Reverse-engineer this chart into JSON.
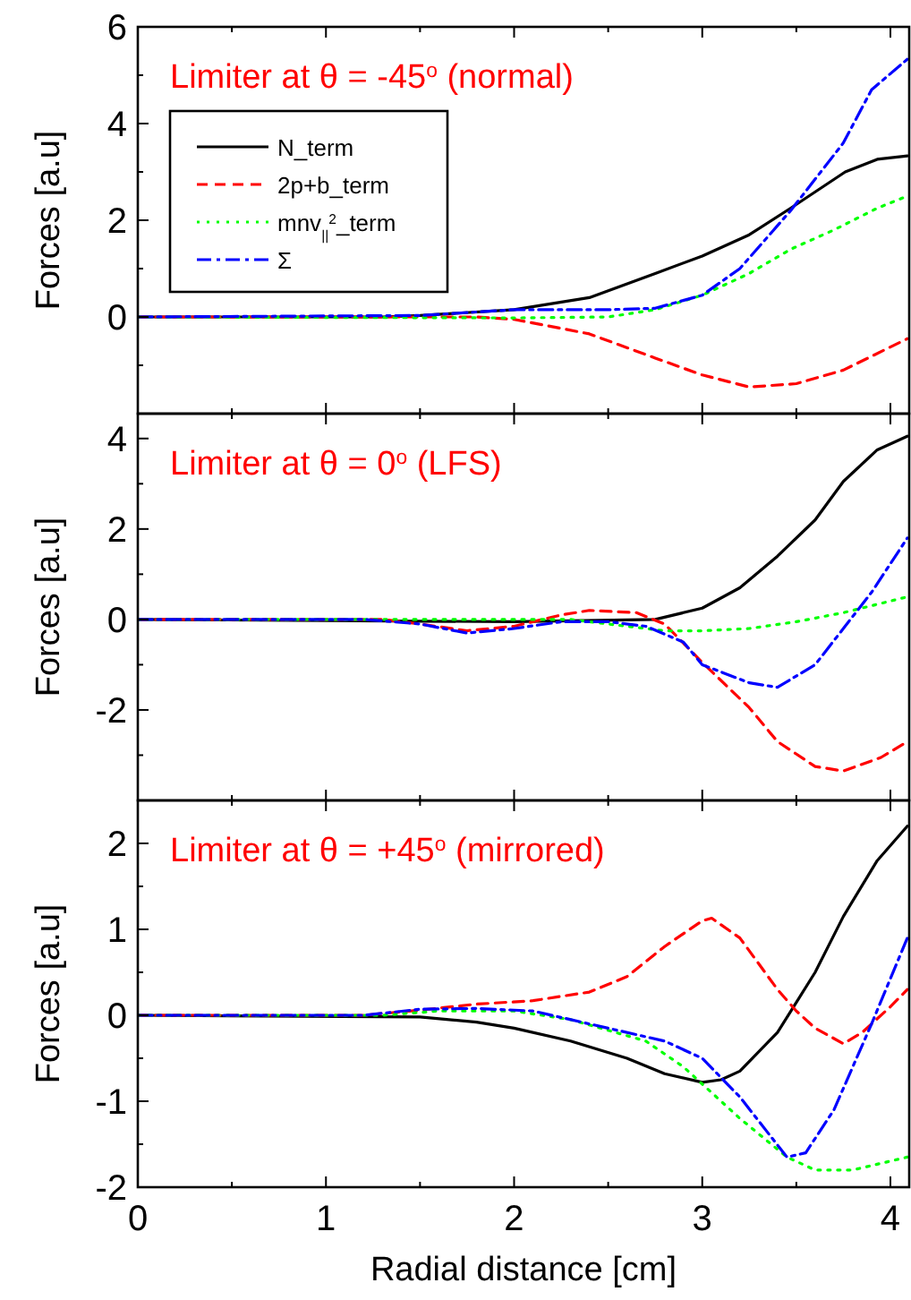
{
  "chart_data": [
    {
      "type": "line",
      "ylabel": "Forces [a.u]",
      "annotations": [
        "Limiter at  θ = -45$^{o}$ (normal)"
      ],
      "xlim": [
        0,
        4.1
      ],
      "xticks": [
        0,
        {
          "value": 0.5,
          "label": null
        },
        1,
        {
          "value": 1.5,
          "label": null
        },
        2,
        {
          "value": 2.5,
          "label": null
        },
        3,
        {
          "value": 3.5,
          "label": null
        },
        4
      ],
      "ylim": [
        -2,
        6
      ],
      "yticks": [
        {
          "value": -1,
          "label": null
        },
        0,
        {
          "value": 1,
          "label": null
        },
        2,
        {
          "value": 3,
          "label": null
        },
        4,
        {
          "value": 5,
          "label": null
        },
        6
      ],
      "tick_labels": "y",
      "legend": "top left",
      "grid": false,
      "series": [
        {
          "name": "N_term",
          "color": "#000000",
          "line_style": "solid",
          "x": [
            0,
            1.3,
            1.5,
            2,
            2.4,
            2.75,
            3,
            3.25,
            3.47,
            3.76,
            3.93,
            4.09
          ],
          "values": [
            0,
            0,
            0.03,
            0.15,
            0.4,
            0.9,
            1.26,
            1.7,
            2.25,
            3.0,
            3.26,
            3.33
          ]
        },
        {
          "name": "2p+b_term",
          "color": "#ff0000",
          "line_style": "dashed",
          "x": [
            0,
            1.8,
            2,
            2.4,
            2.75,
            3,
            3.25,
            3.5,
            3.75,
            4.09
          ],
          "values": [
            0,
            0,
            -0.05,
            -0.35,
            -0.85,
            -1.2,
            -1.45,
            -1.38,
            -1.1,
            -0.45
          ]
        },
        {
          "name": "mnv$_{||}$$^{2}$_term",
          "color": "#00ff00",
          "line_style": "dotted",
          "x": [
            0,
            2,
            2.5,
            2.75,
            3,
            3.25,
            3.47,
            3.7,
            3.93,
            4.09
          ],
          "values": [
            0,
            -0.02,
            0,
            0.15,
            0.45,
            0.9,
            1.4,
            1.8,
            2.25,
            2.5
          ]
        },
        {
          "name": "Σ",
          "color": "#0000ff",
          "line_style": "dashdot",
          "x": [
            0,
            1.5,
            2,
            2.5,
            2.75,
            3,
            3.2,
            3.47,
            3.75,
            3.9,
            4.09
          ],
          "values": [
            0,
            0.03,
            0.15,
            0.15,
            0.18,
            0.45,
            1.0,
            2.2,
            3.6,
            4.7,
            5.33
          ]
        }
      ]
    },
    {
      "type": "line",
      "ylabel": "Forces [a.u]",
      "annotations": [
        "Limiter at  θ = 0$^{o}$ (LFS)"
      ],
      "xlim": [
        0,
        4.1
      ],
      "xticks": [
        0,
        {
          "value": 0.5,
          "label": null
        },
        1,
        {
          "value": 1.5,
          "label": null
        },
        2,
        {
          "value": 2.5,
          "label": null
        },
        3,
        {
          "value": 3.5,
          "label": null
        },
        4
      ],
      "ylim": [
        -4,
        4.55
      ],
      "yticks": [
        {
          "value": -3,
          "label": null
        },
        -2,
        {
          "value": -1,
          "label": null
        },
        0,
        {
          "value": 1,
          "label": null
        },
        2,
        {
          "value": 3,
          "label": null
        },
        4
      ],
      "tick_labels": "y",
      "grid": false,
      "series": [
        {
          "color": "#000000",
          "line_style": "solid",
          "x": [
            0,
            2,
            2.75,
            3,
            3.2,
            3.4,
            3.6,
            3.75,
            3.93,
            4.09
          ],
          "values": [
            0,
            -0.05,
            0,
            0.25,
            0.7,
            1.4,
            2.2,
            3.05,
            3.75,
            4.05
          ]
        },
        {
          "color": "#ff0000",
          "line_style": "dashed",
          "x": [
            0,
            1.3,
            1.5,
            1.75,
            2,
            2.25,
            2.4,
            2.65,
            2.8,
            3,
            3.25,
            3.4,
            3.6,
            3.75,
            3.95,
            4.09
          ],
          "values": [
            0,
            0,
            -0.1,
            -0.25,
            -0.15,
            0.1,
            0.2,
            0.15,
            -0.1,
            -0.95,
            -1.95,
            -2.7,
            -3.25,
            -3.35,
            -3.05,
            -2.7
          ]
        },
        {
          "color": "#00ff00",
          "line_style": "dotted",
          "x": [
            0,
            2.3,
            2.5,
            2.8,
            3,
            3.25,
            3.5,
            3.75,
            4.09
          ],
          "values": [
            0,
            0,
            -0.1,
            -0.25,
            -0.25,
            -0.2,
            -0.05,
            0.15,
            0.5
          ]
        },
        {
          "color": "#0000ff",
          "line_style": "dashdot",
          "x": [
            0,
            1.2,
            1.5,
            1.75,
            2,
            2.25,
            2.5,
            2.7,
            2.9,
            3,
            3.25,
            3.4,
            3.6,
            3.75,
            3.9,
            4.09
          ],
          "values": [
            0,
            0,
            -0.1,
            -0.3,
            -0.2,
            -0.05,
            -0.05,
            -0.15,
            -0.5,
            -1.0,
            -1.4,
            -1.5,
            -1.0,
            -0.2,
            0.6,
            1.8
          ]
        }
      ]
    },
    {
      "type": "line",
      "xlabel": "Radial distance [cm]",
      "ylabel": "Forces [a.u]",
      "annotations": [
        "Limiter at  θ = +45$^{o}$ (mirrored)"
      ],
      "xlim": [
        0,
        4.1
      ],
      "xticks": [
        0,
        {
          "value": 0.5,
          "label": null
        },
        1,
        {
          "value": 1.5,
          "label": null
        },
        2,
        {
          "value": 2.5,
          "label": null
        },
        3,
        {
          "value": 3.5,
          "label": null
        },
        4
      ],
      "ylim": [
        -2,
        2.5
      ],
      "yticks": [
        -2,
        {
          "value": -1.5,
          "label": null
        },
        -1,
        {
          "value": -0.5,
          "label": null
        },
        0,
        {
          "value": 0.5,
          "label": null
        },
        1,
        {
          "value": 1.5,
          "label": null
        },
        2
      ],
      "grid": false,
      "series": [
        {
          "color": "#000000",
          "line_style": "solid",
          "x": [
            0,
            1.5,
            1.8,
            2,
            2.3,
            2.6,
            2.8,
            3,
            3.1,
            3.2,
            3.4,
            3.5,
            3.6,
            3.75,
            3.93,
            4.09
          ],
          "values": [
            0,
            -0.02,
            -0.08,
            -0.15,
            -0.3,
            -0.5,
            -0.68,
            -0.78,
            -0.75,
            -0.65,
            -0.2,
            0.15,
            0.5,
            1.15,
            1.8,
            2.2
          ]
        },
        {
          "color": "#ff0000",
          "line_style": "dashed",
          "x": [
            0,
            1.2,
            1.5,
            1.8,
            2.1,
            2.4,
            2.6,
            2.8,
            3,
            3.05,
            3.2,
            3.4,
            3.5,
            3.6,
            3.75,
            3.85,
            4,
            4.09
          ],
          "values": [
            0,
            0,
            0.06,
            0.13,
            0.17,
            0.27,
            0.45,
            0.8,
            1.1,
            1.13,
            0.9,
            0.3,
            0.05,
            -0.15,
            -0.33,
            -0.2,
            0.1,
            0.3
          ]
        },
        {
          "color": "#00ff00",
          "line_style": "dotted",
          "x": [
            0,
            1.3,
            1.6,
            2,
            2.3,
            2.7,
            2.9,
            3,
            3.2,
            3.45,
            3.6,
            3.8,
            4.09
          ],
          "values": [
            0,
            0,
            0.05,
            0.05,
            -0.05,
            -0.3,
            -0.6,
            -0.8,
            -1.2,
            -1.65,
            -1.8,
            -1.8,
            -1.65
          ]
        },
        {
          "color": "#0000ff",
          "line_style": "dashdot",
          "x": [
            0,
            1.2,
            1.5,
            1.8,
            2.1,
            2.5,
            2.8,
            3,
            3.2,
            3.45,
            3.55,
            3.7,
            3.9,
            4.09
          ],
          "values": [
            0,
            0,
            0.07,
            0.08,
            0.05,
            -0.15,
            -0.3,
            -0.5,
            -0.95,
            -1.65,
            -1.6,
            -1.1,
            -0.1,
            0.9
          ]
        }
      ]
    }
  ]
}
